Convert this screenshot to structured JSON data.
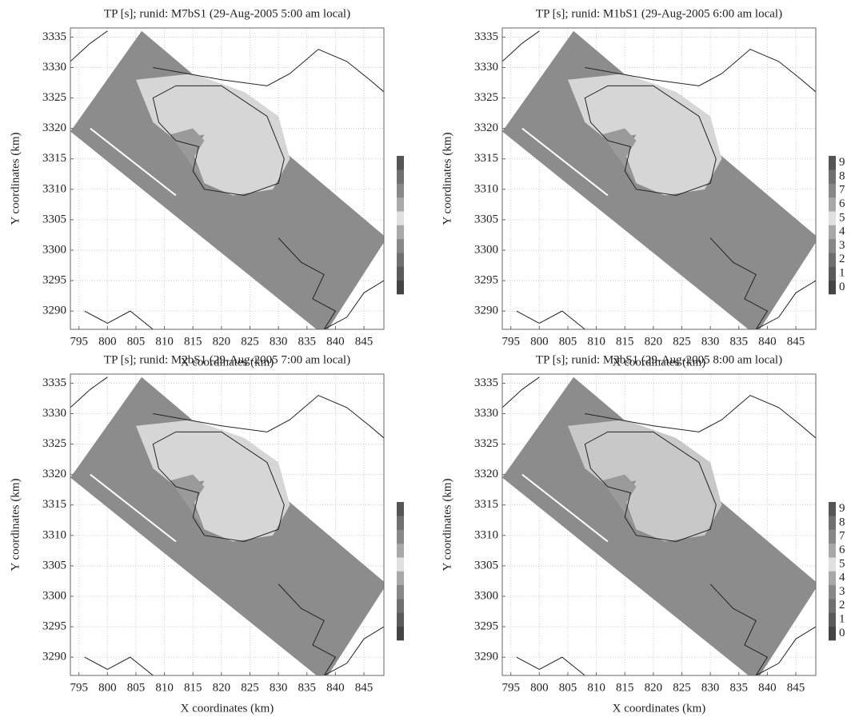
{
  "chart_data": [
    {
      "type": "map",
      "title": "TP [s]; runid: M7bS1 (29-Aug-2005 5:00 am local)",
      "xlabel": "X coordinates (km)",
      "ylabel": "Y coordinates (km)",
      "xlim": [
        793.5,
        848.5
      ],
      "ylim": [
        3287,
        3336.5
      ],
      "xticks": [
        795,
        800,
        805,
        810,
        815,
        820,
        825,
        830,
        835,
        840,
        845
      ],
      "yticks": [
        3290,
        3295,
        3300,
        3305,
        3310,
        3315,
        3320,
        3325,
        3330,
        3335
      ],
      "grid": true,
      "colorbar_colors": [
        "#444444",
        "#5a5a5a",
        "#707070",
        "#888888",
        "#a8a8a8",
        "#e0e0e0",
        "#a8a8a8",
        "#888888",
        "#707070",
        "#555555"
      ]
    },
    {
      "type": "map",
      "title": "TP [s]; runid: M1bS1 (29-Aug-2005 6:00 am local)",
      "xlabel": "X coordinates (km)",
      "ylabel": "Y coordinates (km)",
      "xlim": [
        793.5,
        848.5
      ],
      "ylim": [
        3287,
        3336.5
      ],
      "xticks": [
        795,
        800,
        805,
        810,
        815,
        820,
        825,
        830,
        835,
        840,
        845
      ],
      "yticks": [
        3290,
        3295,
        3300,
        3305,
        3310,
        3315,
        3320,
        3325,
        3330,
        3335
      ],
      "grid": true,
      "colorbar_colors": [
        "#444444",
        "#5a5a5a",
        "#707070",
        "#888888",
        "#a8a8a8",
        "#e0e0e0",
        "#a8a8a8",
        "#888888",
        "#707070",
        "#555555"
      ],
      "colorbar_ticks": [
        0,
        1,
        2,
        3,
        4,
        5,
        6,
        7,
        8,
        9
      ]
    },
    {
      "type": "map",
      "title": "TP [s]; runid: M2bS1 (29-Aug-2005 7:00 am local)",
      "xlabel": "X coordinates (km)",
      "ylabel": "Y coordinates (km)",
      "xlim": [
        793.5,
        848.5
      ],
      "ylim": [
        3287,
        3336.5
      ],
      "xticks": [
        795,
        800,
        805,
        810,
        815,
        820,
        825,
        830,
        835,
        840,
        845
      ],
      "yticks": [
        3290,
        3295,
        3300,
        3305,
        3310,
        3315,
        3320,
        3325,
        3330,
        3335
      ],
      "grid": true,
      "colorbar_colors": [
        "#444444",
        "#5a5a5a",
        "#707070",
        "#888888",
        "#a8a8a8",
        "#e0e0e0",
        "#a8a8a8",
        "#888888",
        "#707070",
        "#555555"
      ]
    },
    {
      "type": "map",
      "title": "TP [s]; runid: M3bS1 (29-Aug-2005 8:00 am local)",
      "xlabel": "X coordinates (km)",
      "ylabel": "Y coordinates (km)",
      "xlim": [
        793.5,
        848.5
      ],
      "ylim": [
        3287,
        3336.5
      ],
      "xticks": [
        795,
        800,
        805,
        810,
        815,
        820,
        825,
        830,
        835,
        840,
        845
      ],
      "yticks": [
        3290,
        3295,
        3300,
        3305,
        3310,
        3315,
        3320,
        3325,
        3330,
        3335
      ],
      "grid": true,
      "colorbar_colors": [
        "#444444",
        "#5a5a5a",
        "#707070",
        "#888888",
        "#a8a8a8",
        "#e0e0e0",
        "#a8a8a8",
        "#888888",
        "#707070",
        "#555555"
      ],
      "colorbar_ticks": [
        0,
        1,
        2,
        3,
        4,
        5,
        6,
        7,
        8,
        9
      ]
    }
  ]
}
